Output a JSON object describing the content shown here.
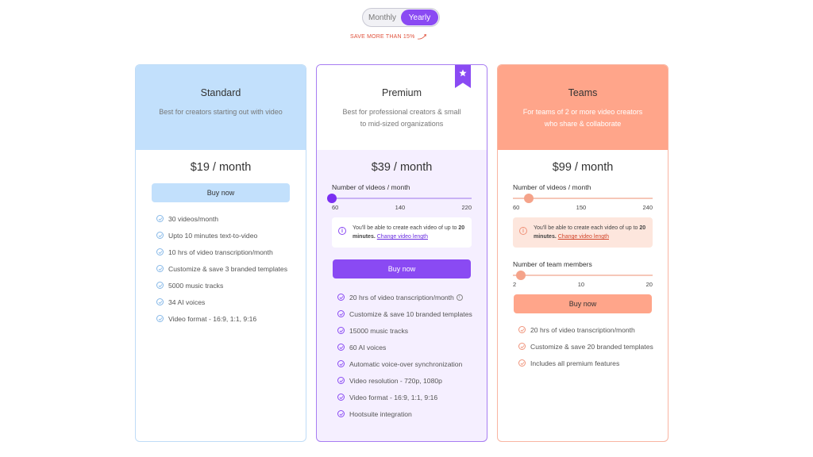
{
  "toggle": {
    "monthly": "Monthly",
    "yearly": "Yearly",
    "selected": "Yearly"
  },
  "save_note": "SAVE MORE THAN 15%",
  "colors": {
    "accent": "#8a4af3",
    "standard": "#c2e0fc",
    "teams": "#ffa58a"
  },
  "plans": {
    "standard": {
      "name": "Standard",
      "desc": "Best for creators starting out with video",
      "price": "$19 / month",
      "button": "Buy now",
      "features": [
        "30 videos/month",
        "Upto 10 minutes text-to-video",
        "10 hrs of video transcription/month",
        "Customize & save 3 branded templates",
        "5000 music tracks",
        "34 AI voices",
        "Video format - 16:9, 1:1, 9:16"
      ]
    },
    "premium": {
      "name": "Premium",
      "desc": "Best for professional creators & small to mid-sized organizations",
      "price": "$39 / month",
      "slider_label": "Number of videos / month",
      "slider_ticks": [
        "60",
        "140",
        "220"
      ],
      "slider_value": 60,
      "info_text": "You'll be able to create each video of up to ",
      "info_bold": "20 minutes.",
      "info_link": "Change video length",
      "button": "Buy now",
      "features": [
        "20 hrs of video transcription/month",
        "Customize & save 10 branded templates",
        "15000 music tracks",
        "60 AI voices",
        "Automatic voice-over synchronization",
        "Video resolution - 720p, 1080p",
        "Video format - 16:9, 1:1, 9:16",
        "Hootsuite integration"
      ]
    },
    "teams": {
      "name": "Teams",
      "desc": "For teams of 2 or more video creators who share & collaborate",
      "price": "$99 / month",
      "slider_label": "Number of videos / month",
      "slider_ticks": [
        "60",
        "150",
        "240"
      ],
      "slider_value": 80,
      "info_text": "You'll be able to create each video of up to ",
      "info_bold": "20 minutes.",
      "info_link": "Change video length",
      "members_label": "Number of team members",
      "members_ticks": [
        "2",
        "10",
        "20"
      ],
      "members_value": 3,
      "button": "Buy now",
      "features": [
        "20 hrs of video transcription/month",
        "Customize & save 20 branded templates",
        "Includes all premium features"
      ]
    }
  }
}
